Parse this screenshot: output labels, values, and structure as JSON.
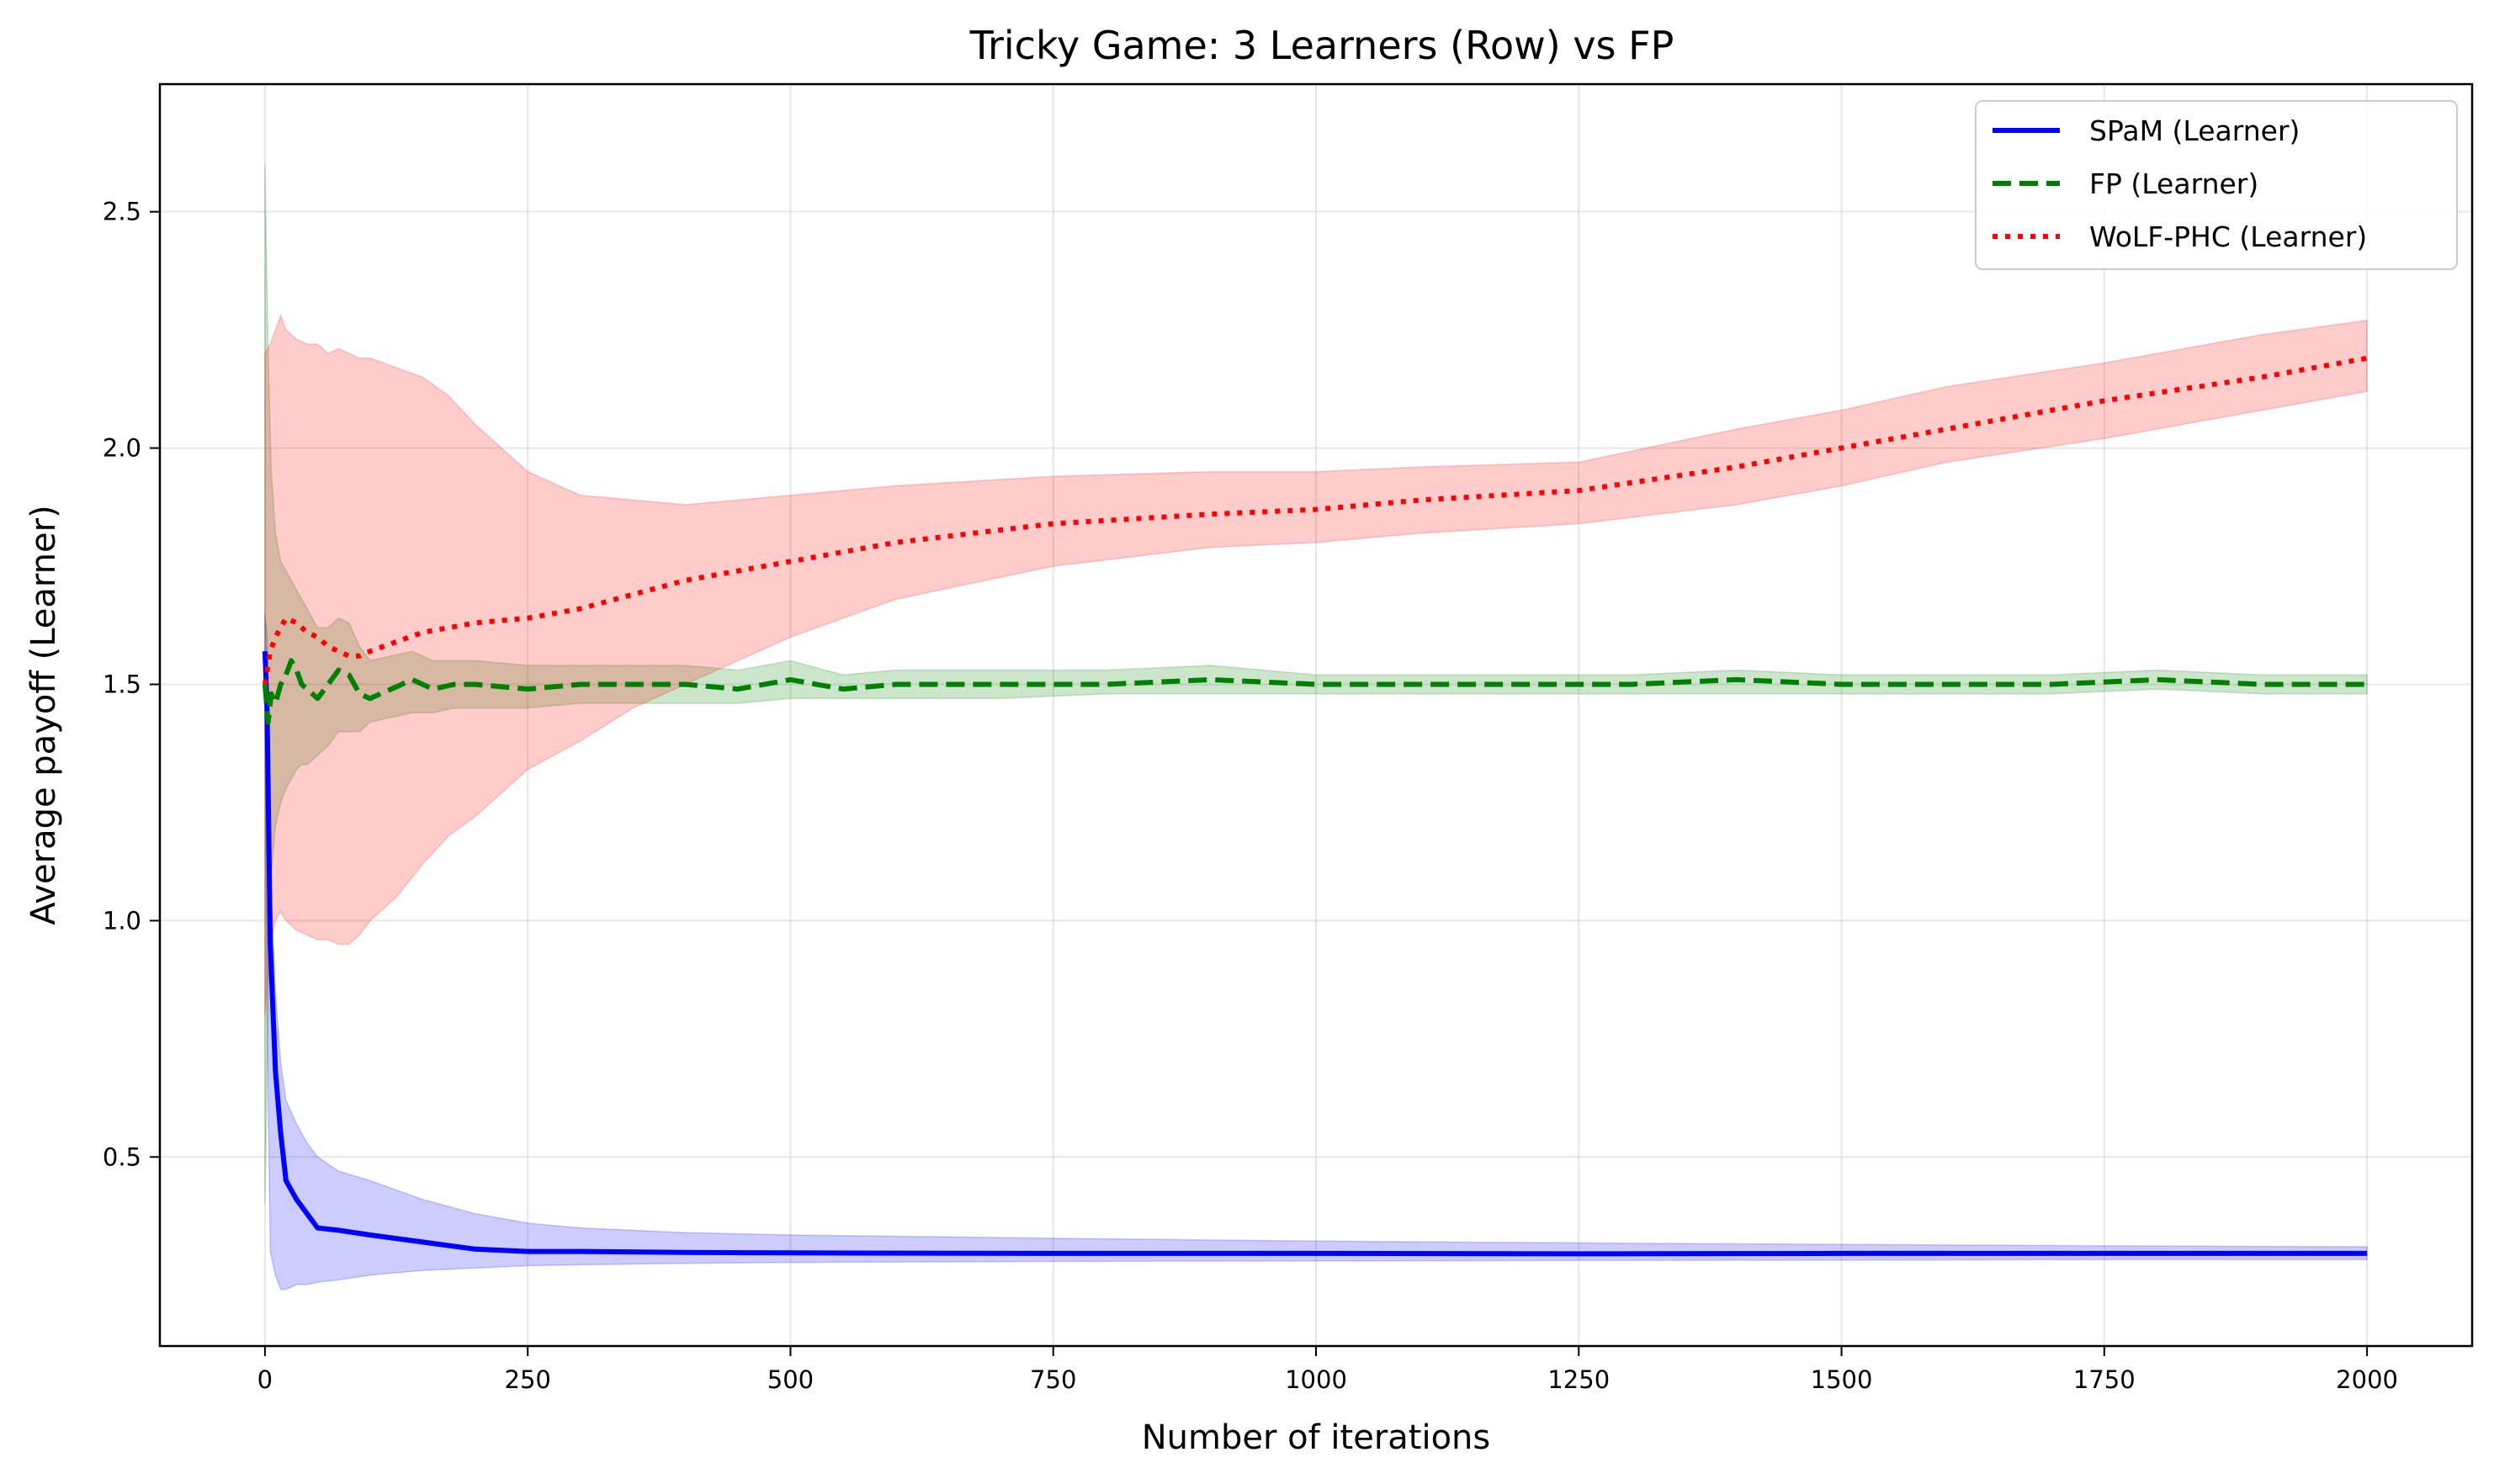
{
  "chart_data": {
    "type": "line",
    "title": "Tricky Game: 3 Learners (Row) vs FP",
    "xlabel": "Number of iterations",
    "ylabel": "Average payoff (Learner)",
    "xlim": [
      -100,
      2100
    ],
    "ylim": [
      0.1,
      2.77
    ],
    "xticks": [
      0,
      250,
      500,
      750,
      1000,
      1250,
      1500,
      1750,
      2000
    ],
    "yticks": [
      0.5,
      1.0,
      1.5,
      2.0,
      2.5
    ],
    "xtick_labels": [
      "0",
      "250",
      "500",
      "750",
      "1000",
      "1250",
      "1500",
      "1750",
      "2000"
    ],
    "ytick_labels": [
      "0.5",
      "1.0",
      "1.5",
      "2.0",
      "2.5"
    ],
    "grid": true,
    "legend_position": "top-right",
    "series": [
      {
        "name": "SPaM (Learner)",
        "color": "#0000ff",
        "style": "solid",
        "x": [
          0,
          2,
          5,
          10,
          15,
          20,
          30,
          40,
          50,
          70,
          100,
          150,
          200,
          250,
          300,
          400,
          500,
          750,
          1000,
          1250,
          1500,
          1750,
          2000
        ],
        "y": [
          1.57,
          1.45,
          0.95,
          0.68,
          0.55,
          0.45,
          0.41,
          0.38,
          0.35,
          0.345,
          0.335,
          0.32,
          0.305,
          0.3,
          0.3,
          0.298,
          0.297,
          0.296,
          0.296,
          0.295,
          0.296,
          0.296,
          0.296
        ],
        "lower": [
          1.45,
          0.8,
          0.3,
          0.25,
          0.22,
          0.22,
          0.23,
          0.23,
          0.235,
          0.24,
          0.25,
          0.26,
          0.265,
          0.27,
          0.272,
          0.275,
          0.277,
          0.279,
          0.28,
          0.281,
          0.282,
          0.283,
          0.283
        ],
        "upper": [
          1.65,
          1.6,
          1.1,
          0.85,
          0.7,
          0.62,
          0.57,
          0.53,
          0.5,
          0.47,
          0.45,
          0.41,
          0.38,
          0.36,
          0.35,
          0.34,
          0.335,
          0.328,
          0.322,
          0.318,
          0.315,
          0.312,
          0.31
        ]
      },
      {
        "name": "FP (Learner)",
        "color": "#008000",
        "style": "dashed",
        "x": [
          0,
          3,
          6,
          10,
          15,
          20,
          25,
          30,
          35,
          40,
          50,
          60,
          70,
          80,
          90,
          100,
          120,
          140,
          160,
          180,
          200,
          250,
          300,
          350,
          400,
          450,
          500,
          550,
          600,
          650,
          700,
          800,
          900,
          1000,
          1100,
          1200,
          1300,
          1400,
          1500,
          1600,
          1700,
          1800,
          1900,
          2000
        ],
        "y": [
          1.5,
          1.42,
          1.48,
          1.46,
          1.5,
          1.52,
          1.55,
          1.53,
          1.5,
          1.49,
          1.47,
          1.5,
          1.53,
          1.52,
          1.48,
          1.47,
          1.49,
          1.51,
          1.49,
          1.5,
          1.5,
          1.49,
          1.5,
          1.5,
          1.5,
          1.49,
          1.51,
          1.49,
          1.5,
          1.5,
          1.5,
          1.5,
          1.51,
          1.5,
          1.5,
          1.5,
          1.5,
          1.51,
          1.5,
          1.5,
          1.5,
          1.51,
          1.5,
          1.5
        ],
        "lower": [
          0.4,
          0.8,
          1.1,
          1.2,
          1.25,
          1.28,
          1.3,
          1.32,
          1.33,
          1.33,
          1.35,
          1.37,
          1.4,
          1.4,
          1.4,
          1.42,
          1.43,
          1.44,
          1.44,
          1.45,
          1.45,
          1.45,
          1.46,
          1.46,
          1.46,
          1.46,
          1.47,
          1.47,
          1.47,
          1.47,
          1.47,
          1.48,
          1.48,
          1.48,
          1.48,
          1.48,
          1.48,
          1.48,
          1.48,
          1.48,
          1.48,
          1.49,
          1.48,
          1.48
        ],
        "upper": [
          2.6,
          2.2,
          1.95,
          1.82,
          1.76,
          1.74,
          1.72,
          1.7,
          1.68,
          1.66,
          1.62,
          1.62,
          1.64,
          1.63,
          1.58,
          1.55,
          1.56,
          1.57,
          1.55,
          1.55,
          1.55,
          1.54,
          1.54,
          1.54,
          1.54,
          1.53,
          1.55,
          1.52,
          1.53,
          1.53,
          1.53,
          1.53,
          1.54,
          1.52,
          1.52,
          1.52,
          1.52,
          1.53,
          1.52,
          1.52,
          1.52,
          1.53,
          1.52,
          1.52
        ]
      },
      {
        "name": "WoLF-PHC (Learner)",
        "color": "#ff0000",
        "style": "dotted",
        "x": [
          0,
          5,
          10,
          15,
          20,
          30,
          40,
          50,
          60,
          70,
          80,
          90,
          100,
          125,
          150,
          175,
          200,
          250,
          300,
          350,
          400,
          500,
          600,
          750,
          900,
          1000,
          1100,
          1250,
          1400,
          1500,
          1600,
          1750,
          1900,
          2000
        ],
        "y": [
          1.5,
          1.57,
          1.6,
          1.62,
          1.64,
          1.63,
          1.61,
          1.6,
          1.58,
          1.57,
          1.56,
          1.56,
          1.57,
          1.59,
          1.61,
          1.62,
          1.63,
          1.64,
          1.66,
          1.69,
          1.72,
          1.76,
          1.8,
          1.84,
          1.86,
          1.87,
          1.89,
          1.91,
          1.96,
          2.0,
          2.04,
          2.1,
          2.15,
          2.19
        ],
        "lower": [
          0.8,
          0.95,
          1.0,
          1.02,
          1.0,
          0.98,
          0.97,
          0.96,
          0.96,
          0.95,
          0.95,
          0.97,
          1.0,
          1.05,
          1.12,
          1.18,
          1.22,
          1.32,
          1.38,
          1.45,
          1.5,
          1.6,
          1.68,
          1.75,
          1.79,
          1.8,
          1.82,
          1.84,
          1.88,
          1.92,
          1.97,
          2.02,
          2.08,
          2.12
        ],
        "upper": [
          2.2,
          2.22,
          2.25,
          2.28,
          2.25,
          2.23,
          2.22,
          2.22,
          2.2,
          2.21,
          2.2,
          2.19,
          2.19,
          2.17,
          2.15,
          2.11,
          2.05,
          1.95,
          1.9,
          1.89,
          1.88,
          1.9,
          1.92,
          1.94,
          1.95,
          1.95,
          1.96,
          1.97,
          2.04,
          2.08,
          2.13,
          2.18,
          2.24,
          2.27
        ]
      }
    ]
  }
}
